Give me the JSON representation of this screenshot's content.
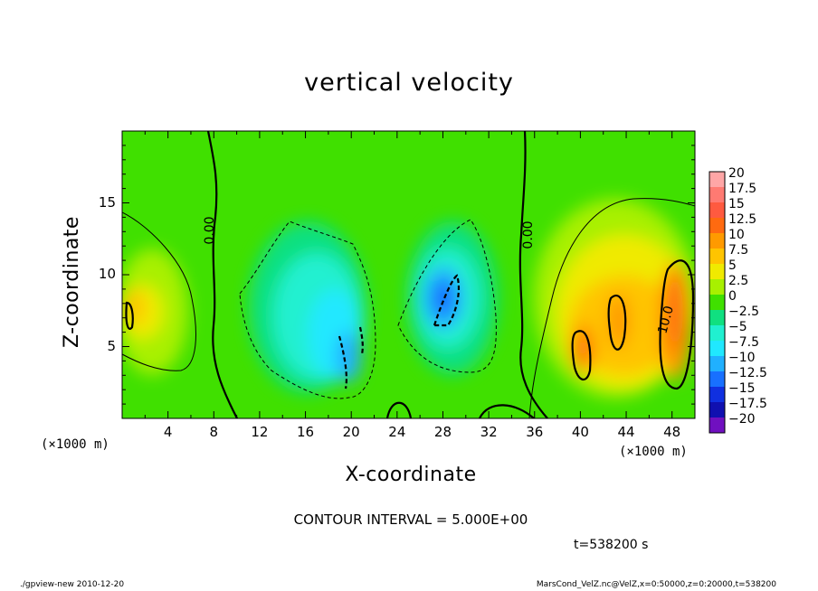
{
  "chart_data": {
    "type": "heatmap",
    "title": "vertical velocity",
    "xlabel": "X-coordinate",
    "ylabel": "Z-coordinate",
    "x_unit": "(×1000 m)",
    "y_unit": "(×1000 m)",
    "xlim": [
      0,
      50
    ],
    "ylim": [
      0,
      20
    ],
    "xticks": [
      "4",
      "8",
      "12",
      "16",
      "20",
      "24",
      "28",
      "32",
      "36",
      "40",
      "44",
      "48"
    ],
    "yticks": [
      "5",
      "10",
      "15"
    ],
    "contour_interval_label": "CONTOUR INTERVAL = 5.000E+00",
    "contour_labels": [
      "0.00",
      "0.00",
      "10.0"
    ],
    "colorbar": {
      "labels": [
        "20",
        "17.5",
        "15",
        "12.5",
        "10",
        "7.5",
        "5",
        "2.5",
        "0",
        "−2.5",
        "−5",
        "−7.5",
        "−10",
        "−12.5",
        "−15",
        "−17.5",
        "−20"
      ],
      "colors": [
        "#ffa6a6",
        "#ff7a72",
        "#ff5a40",
        "#ff6a10",
        "#ff9a00",
        "#ffc400",
        "#f0ea00",
        "#a8f000",
        "#40e000",
        "#10e080",
        "#20f0d0",
        "#20e8ff",
        "#20b0ff",
        "#1870ff",
        "#1030e0",
        "#1010b0",
        "#7010c0"
      ]
    },
    "features": [
      {
        "x": 2.2,
        "z": 8.0,
        "value": 10
      },
      {
        "x": 19.5,
        "z": 5.0,
        "value": -12
      },
      {
        "x": 28.0,
        "z": 8.5,
        "value": -13
      },
      {
        "x": 40.5,
        "z": 5.5,
        "value": 12
      },
      {
        "x": 43.0,
        "z": 6.5,
        "value": 11
      },
      {
        "x": 48.0,
        "z": 8.0,
        "value": 13
      }
    ]
  },
  "annotations": {
    "time": "t=538200 s",
    "footer_left": "./gpview-new  2010-12-20",
    "footer_right": "MarsCond_VelZ.nc@VelZ,x=0:50000,z=0:20000,t=538200"
  }
}
